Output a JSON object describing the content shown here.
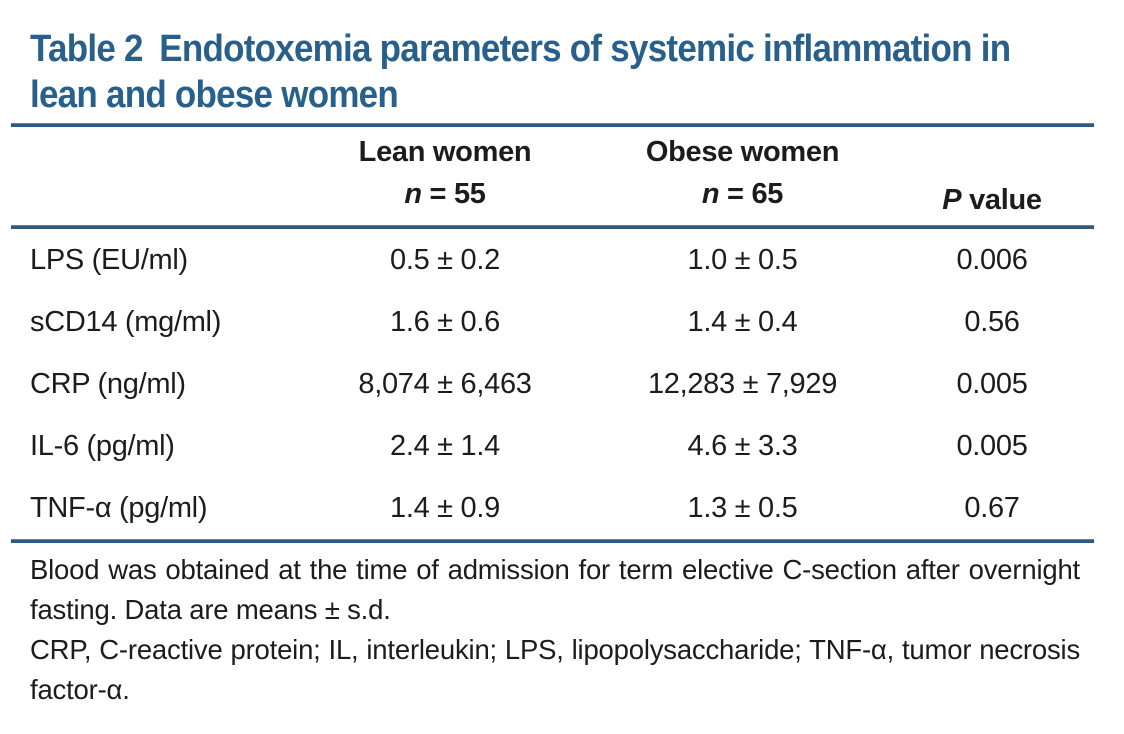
{
  "caption": {
    "label": "Table 2",
    "line1": "Endotoxemia parameters of systemic inflammation in",
    "line2": "lean and obese women"
  },
  "header": {
    "lean": {
      "name": "Lean women",
      "n_italic": "n",
      "n_rest": " = 55"
    },
    "obese": {
      "name": "Obese women",
      "n_italic": "n",
      "n_rest": " = 65"
    },
    "p": {
      "italic": "P",
      "rest": " value"
    }
  },
  "rows": [
    {
      "param": "LPS (EU/ml)",
      "lean": "0.5 ± 0.2",
      "obese": "1.0 ± 0.5",
      "p": "0.006"
    },
    {
      "param": "sCD14 (mg/ml)",
      "lean": "1.6 ± 0.6",
      "obese": "1.4 ± 0.4",
      "p": "0.56"
    },
    {
      "param": "CRP (ng/ml)",
      "lean": "8,074 ± 6,463",
      "obese": "12,283 ± 7,929",
      "p": "0.005"
    },
    {
      "param": "IL-6 (pg/ml)",
      "lean": "2.4 ± 1.4",
      "obese": "4.6 ± 3.3",
      "p": "0.005"
    },
    {
      "param": "TNF-α (pg/ml)",
      "lean": "1.4 ± 0.9",
      "obese": "1.3 ± 0.5",
      "p": "0.67"
    }
  ],
  "footnotes": [
    "Blood was obtained at the time of admission for term elective C-section after overnight fasting. Data are means ± s.d.",
    "CRP, C-reactive protein; IL, interleukin; LPS, lipopolysaccharide; TNF-α, tumor necrosis factor-α."
  ],
  "colors": {
    "caption_blue": "#28608b",
    "rule_blue": "#2e5a7c",
    "text": "#1c1c1c"
  }
}
